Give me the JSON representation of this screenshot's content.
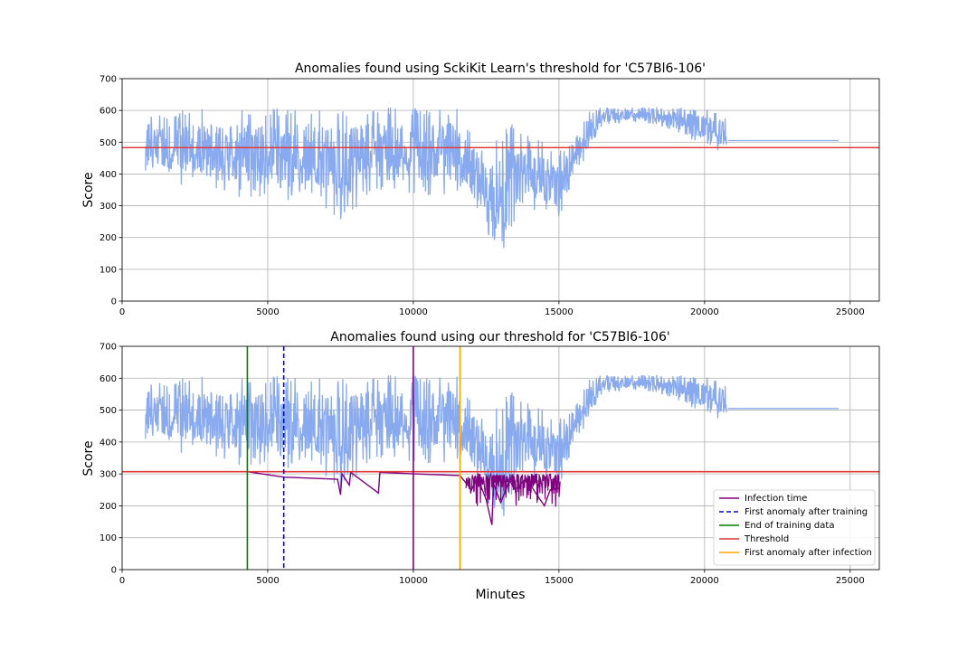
{
  "chart_data": [
    {
      "type": "line",
      "title": "Anomalies found using SckiKit Learn's threshold for 'C57Bl6-106'",
      "xlabel": "",
      "ylabel": "Score",
      "xlim": [
        0,
        26000
      ],
      "ylim": [
        0,
        700
      ],
      "xticks": [
        0,
        5000,
        10000,
        15000,
        20000,
        25000
      ],
      "yticks": [
        0,
        100,
        200,
        300,
        400,
        500,
        600,
        700
      ],
      "grid": true,
      "colors": {
        "series": "#8aaaf0",
        "threshold": "#e03a3a"
      },
      "hlines": [
        {
          "y": 483,
          "color": "#e03a3a"
        }
      ],
      "series_envelope": {
        "x": [
          800,
          1500,
          2500,
          3500,
          4500,
          5500,
          6500,
          7500,
          8500,
          9500,
          10500,
          11500,
          12000,
          12500,
          13000,
          13500,
          14000,
          14500,
          15000,
          15500,
          16000,
          16500,
          17500,
          18500,
          19500,
          20500,
          20750
        ],
        "min": [
          410,
          370,
          340,
          330,
          320,
          300,
          330,
          250,
          330,
          330,
          330,
          330,
          290,
          200,
          150,
          220,
          280,
          270,
          240,
          390,
          460,
          550,
          560,
          550,
          510,
          470,
          470
        ],
        "max": [
          600,
          590,
          610,
          600,
          610,
          610,
          610,
          600,
          610,
          610,
          610,
          610,
          540,
          480,
          520,
          580,
          520,
          500,
          480,
          500,
          600,
          610,
          610,
          610,
          610,
          600,
          580
        ]
      },
      "flat_segment": {
        "x": [
          20800,
          24600
        ],
        "y": 505
      }
    },
    {
      "type": "line",
      "title": "Anomalies found using our threshold for 'C57Bl6-106'",
      "xlabel": "Minutes",
      "ylabel": "Score",
      "xlim": [
        0,
        26000
      ],
      "ylim": [
        0,
        700
      ],
      "xticks": [
        0,
        5000,
        10000,
        15000,
        20000,
        25000
      ],
      "yticks": [
        0,
        100,
        200,
        300,
        400,
        500,
        600,
        700
      ],
      "grid": true,
      "legend_position": "lower-right",
      "legend": [
        {
          "label": "Infection time",
          "color": "#800080",
          "style": "solid"
        },
        {
          "label": "First anomaly after training",
          "color": "#0000ff",
          "style": "dashed"
        },
        {
          "label": "End of training data",
          "color": "#008000",
          "style": "solid"
        },
        {
          "label": "Threshold",
          "color": "#e03a3a",
          "style": "solid"
        },
        {
          "label": "First anomaly after infection",
          "color": "#ffa500",
          "style": "solid"
        }
      ],
      "vlines": [
        {
          "x": 4300,
          "color": "#008000",
          "style": "solid"
        },
        {
          "x": 5550,
          "color": "#0000ff",
          "style": "dashed"
        },
        {
          "x": 10000,
          "color": "#800080",
          "style": "solid"
        },
        {
          "x": 11600,
          "color": "#ffa500",
          "style": "solid"
        }
      ],
      "hlines": [
        {
          "y": 307,
          "color": "#e03a3a"
        }
      ],
      "series_envelope": {
        "x": [
          800,
          1500,
          2500,
          3500,
          4500,
          5500,
          6500,
          7500,
          8500,
          9500,
          10500,
          11500,
          12000,
          12500,
          13000,
          13500,
          14000,
          14500,
          15000,
          15500,
          16000,
          16500,
          17500,
          18500,
          19500,
          20500,
          20750
        ],
        "min": [
          410,
          370,
          340,
          330,
          320,
          300,
          330,
          250,
          330,
          330,
          330,
          330,
          290,
          200,
          150,
          220,
          280,
          270,
          240,
          390,
          460,
          550,
          560,
          550,
          510,
          470,
          470
        ],
        "max": [
          600,
          590,
          610,
          600,
          610,
          610,
          610,
          600,
          610,
          610,
          610,
          610,
          540,
          480,
          520,
          580,
          520,
          500,
          480,
          500,
          600,
          610,
          610,
          610,
          610,
          600,
          580
        ]
      },
      "flat_segment": {
        "x": [
          20800,
          24600
        ],
        "y": 505
      },
      "anomalies": {
        "color": "#800080",
        "x": [
          4300,
          5550,
          7400,
          7500,
          7550,
          7800,
          7850,
          8800,
          8850,
          10000,
          11600,
          12000,
          12200,
          12500,
          12700,
          12750,
          13000,
          13300,
          13500,
          13800,
          14000,
          14200,
          14500,
          14700,
          15000
        ],
        "y": [
          307,
          290,
          283,
          235,
          300,
          265,
          305,
          240,
          305,
          300,
          295,
          250,
          290,
          220,
          140,
          270,
          210,
          280,
          250,
          280,
          270,
          240,
          200,
          250,
          255
        ]
      }
    }
  ]
}
